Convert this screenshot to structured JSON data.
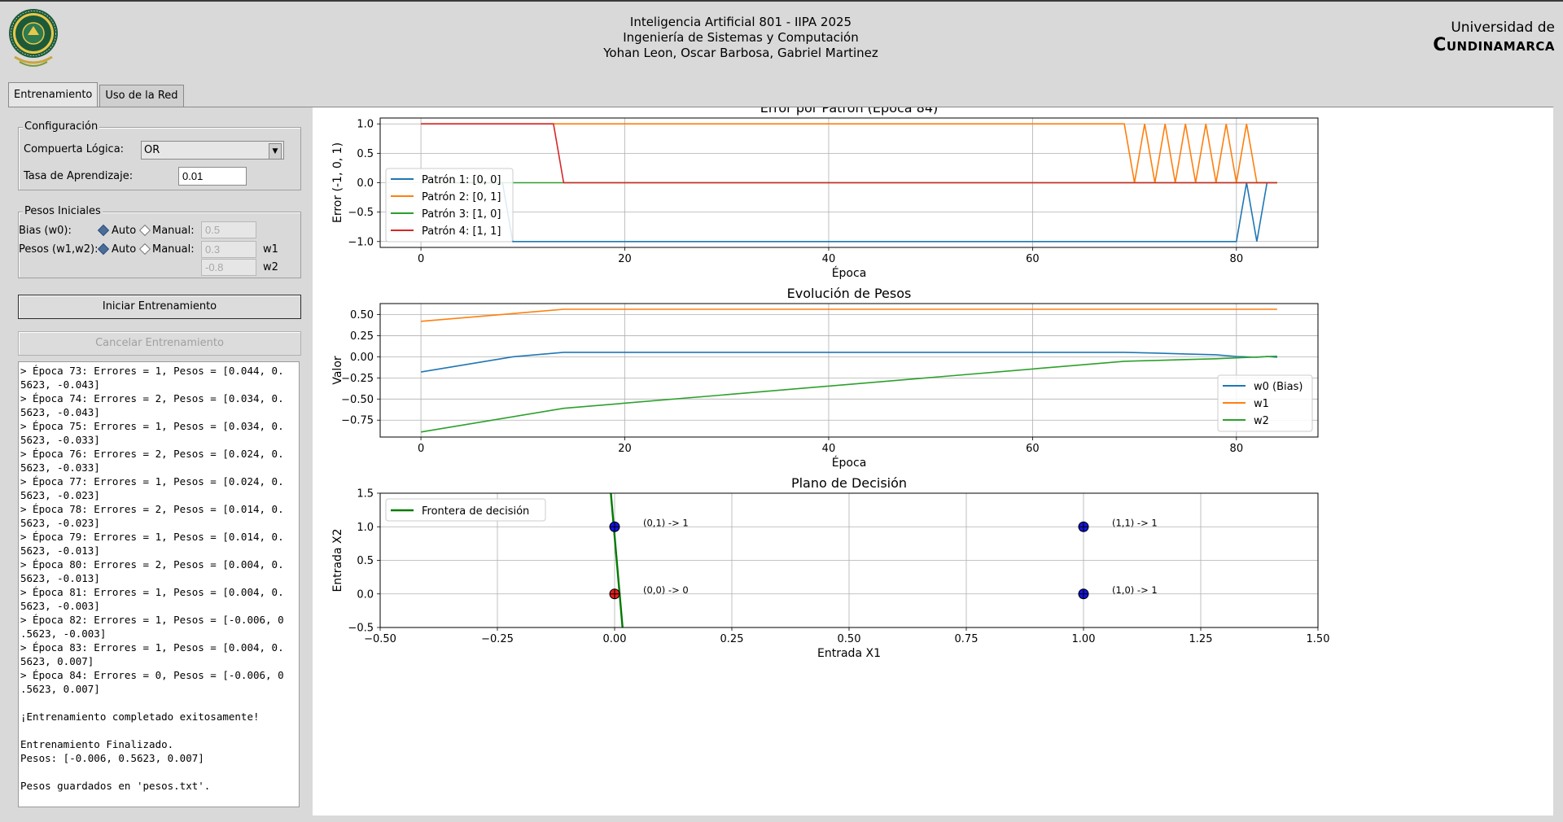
{
  "header": {
    "line1": "Inteligencia Artificial 801 - IIPA 2025",
    "line2": "Ingeniería de Sistemas y Computación",
    "line3": "Yohan Leon, Oscar Barbosa, Gabriel Martinez",
    "brand_line1": "Universidad de",
    "brand_line2": "Cundinamarca",
    "seal_text": "UNIVERSIDAD DE CUNDINAMARCA"
  },
  "tabs": [
    {
      "label": "Entrenamiento",
      "active": true
    },
    {
      "label": "Uso de la Red",
      "active": false
    }
  ],
  "config": {
    "title": "Configuración",
    "gate_label": "Compuerta Lógica:",
    "gate_value": "OR",
    "lr_label": "Tasa de Aprendizaje:",
    "lr_value": "0.01"
  },
  "weights": {
    "title": "Pesos Iniciales",
    "bias_label": "Bias (w0):",
    "pesos_label": "Pesos (w1,w2):",
    "auto_label": "Auto",
    "manual_label": "Manual:",
    "bias_manual": "0.5",
    "w1_manual": "0.3",
    "w2_manual": "-0.8",
    "w1_tag": "w1",
    "w2_tag": "w2",
    "bias_mode": "Auto",
    "pesos_mode": "Auto"
  },
  "buttons": {
    "start": "Iniciar Entrenamiento",
    "cancel": "Cancelar Entrenamiento"
  },
  "log_lines": [
    "> Época 73: Errores = 1, Pesos = [0.044, 0.",
    "5623, -0.043]",
    "> Época 74: Errores = 2, Pesos = [0.034, 0.",
    "5623, -0.043]",
    "> Época 75: Errores = 1, Pesos = [0.034, 0.",
    "5623, -0.033]",
    "> Época 76: Errores = 2, Pesos = [0.024, 0.",
    "5623, -0.033]",
    "> Época 77: Errores = 1, Pesos = [0.024, 0.",
    "5623, -0.023]",
    "> Época 78: Errores = 2, Pesos = [0.014, 0.",
    "5623, -0.023]",
    "> Época 79: Errores = 1, Pesos = [0.014, 0.",
    "5623, -0.013]",
    "> Época 80: Errores = 2, Pesos = [0.004, 0.",
    "5623, -0.013]",
    "> Época 81: Errores = 1, Pesos = [0.004, 0.",
    "5623, -0.003]",
    "> Época 82: Errores = 1, Pesos = [-0.006, 0",
    ".5623, -0.003]",
    "> Época 83: Errores = 1, Pesos = [0.004, 0.",
    "5623, 0.007]",
    "> Época 84: Errores = 0, Pesos = [-0.006, 0",
    ".5623, 0.007]",
    "",
    "¡Entrenamiento completado exitosamente!",
    "",
    "Entrenamiento Finalizado.",
    "Pesos: [-0.006, 0.5623, 0.007]",
    "",
    "Pesos guardados en 'pesos.txt'."
  ],
  "chart_data": [
    {
      "type": "line",
      "title": "Error por Patrón (Época 84)",
      "xlabel": "Época",
      "ylabel": "Error (-1, 0, 1)",
      "xlim": [
        -4,
        88
      ],
      "ylim": [
        -1.1,
        1.1
      ],
      "xticks": [
        0,
        20,
        40,
        60,
        80
      ],
      "yticks": [
        -1.0,
        -0.5,
        0.0,
        0.5,
        1.0
      ],
      "ytick_labels": [
        "−1.0",
        "−0.5",
        "0.0",
        "0.5",
        "1.0"
      ],
      "grid": true,
      "legend": "lower-left",
      "series": [
        {
          "name": "Patrón 1: [0, 0]",
          "color": "#1f77b4",
          "points": [
            [
              0,
              0
            ],
            [
              8,
              0
            ],
            [
              9,
              -1
            ],
            [
              80,
              -1
            ],
            [
              81,
              0
            ],
            [
              82,
              -1
            ],
            [
              83,
              0
            ]
          ]
        },
        {
          "name": "Patrón 2: [0, 1]",
          "color": "#ff7f0e",
          "points": [
            [
              0,
              1
            ],
            [
              69,
              1
            ],
            [
              70,
              0
            ],
            [
              71,
              1
            ],
            [
              72,
              0
            ],
            [
              73,
              1
            ],
            [
              74,
              0
            ],
            [
              75,
              1
            ],
            [
              76,
              0
            ],
            [
              77,
              1
            ],
            [
              78,
              0
            ],
            [
              79,
              1
            ],
            [
              80,
              0
            ],
            [
              81,
              1
            ],
            [
              82,
              0
            ],
            [
              83,
              0
            ],
            [
              84,
              0
            ]
          ]
        },
        {
          "name": "Patrón 3: [1, 0]",
          "color": "#2ca02c",
          "points": [
            [
              0,
              0
            ],
            [
              84,
              0
            ]
          ]
        },
        {
          "name": "Patrón 4: [1, 1]",
          "color": "#d62728",
          "points": [
            [
              0,
              1
            ],
            [
              13,
              1
            ],
            [
              14,
              0
            ],
            [
              84,
              0
            ]
          ]
        }
      ]
    },
    {
      "type": "line",
      "title": "Evolución de Pesos",
      "xlabel": "Época",
      "ylabel": "Valor",
      "xlim": [
        -4,
        88
      ],
      "ylim": [
        -0.95,
        0.63
      ],
      "xticks": [
        0,
        20,
        40,
        60,
        80
      ],
      "yticks": [
        -0.75,
        -0.5,
        -0.25,
        0.0,
        0.25,
        0.5
      ],
      "ytick_labels": [
        "−0.75",
        "−0.50",
        "−0.25",
        "0.00",
        "0.25",
        "0.50"
      ],
      "grid": true,
      "legend": "lower-right",
      "series": [
        {
          "name": "w0 (Bias)",
          "color": "#1f77b4",
          "points": [
            [
              0,
              -0.18
            ],
            [
              9,
              0.0
            ],
            [
              14,
              0.053
            ],
            [
              69,
              0.053
            ],
            [
              72,
              0.044
            ],
            [
              75,
              0.034
            ],
            [
              78,
              0.024
            ],
            [
              80,
              0.004
            ],
            [
              82,
              -0.006
            ],
            [
              83,
              0.004
            ],
            [
              84,
              -0.006
            ]
          ]
        },
        {
          "name": "w1",
          "color": "#ff7f0e",
          "points": [
            [
              0,
              0.42
            ],
            [
              14,
              0.5623
            ],
            [
              84,
              0.5623
            ]
          ]
        },
        {
          "name": "w2",
          "color": "#2ca02c",
          "points": [
            [
              0,
              -0.89
            ],
            [
              14,
              -0.61
            ],
            [
              69,
              -0.053
            ],
            [
              72,
              -0.043
            ],
            [
              75,
              -0.033
            ],
            [
              78,
              -0.023
            ],
            [
              80,
              -0.013
            ],
            [
              82,
              -0.003
            ],
            [
              84,
              0.007
            ]
          ]
        }
      ]
    },
    {
      "type": "scatter",
      "title": "Plano de Decisión",
      "xlabel": "Entrada X1",
      "ylabel": "Entrada X2",
      "xlim": [
        -0.5,
        1.5
      ],
      "ylim": [
        -0.5,
        1.5
      ],
      "xticks": [
        -0.5,
        -0.25,
        0.0,
        0.25,
        0.5,
        0.75,
        1.0,
        1.25,
        1.5
      ],
      "xtick_labels": [
        "−0.50",
        "−0.25",
        "0.00",
        "0.25",
        "0.50",
        "0.75",
        "1.00",
        "1.25",
        "1.50"
      ],
      "yticks": [
        -0.5,
        0.0,
        0.5,
        1.0,
        1.5
      ],
      "ytick_labels": [
        "−0.5",
        "0.0",
        "0.5",
        "1.0",
        "1.5"
      ],
      "grid": true,
      "legend": "upper-left",
      "boundary": {
        "name": "Frontera de decisión",
        "color": "#007a00",
        "w0": -0.006,
        "w1": 0.5623,
        "w2": 0.007
      },
      "points": [
        {
          "x": 0,
          "y": 0,
          "label": "(0,0) -> 0",
          "color": "#e81e1e"
        },
        {
          "x": 0,
          "y": 1,
          "label": "(0,1) -> 1",
          "color": "#1414e0"
        },
        {
          "x": 1,
          "y": 0,
          "label": "(1,0) -> 1",
          "color": "#1414e0"
        },
        {
          "x": 1,
          "y": 1,
          "label": "(1,1) -> 1",
          "color": "#1414e0"
        }
      ]
    }
  ]
}
